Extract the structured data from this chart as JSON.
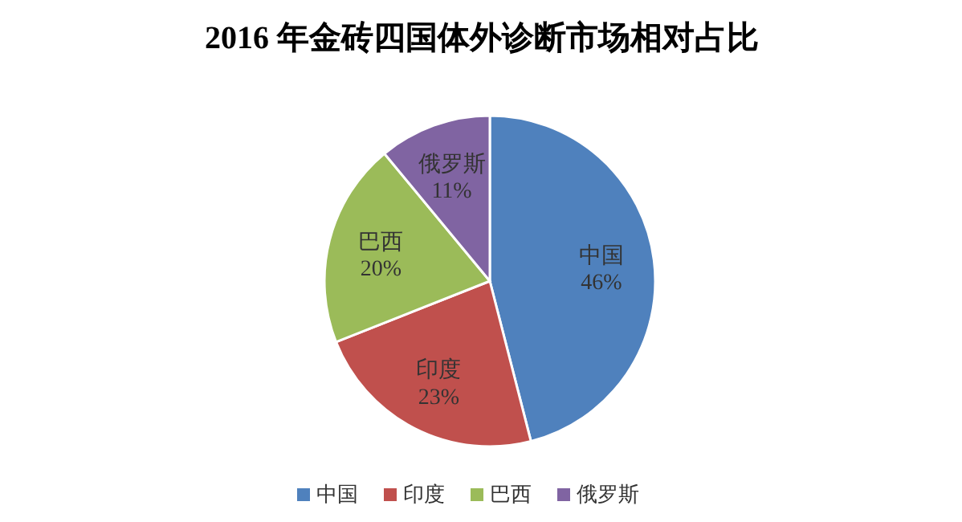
{
  "chart_data": {
    "type": "pie",
    "title": "2016 年金砖四国体外诊断市场相对占比",
    "categories": [
      "中国",
      "印度",
      "巴西",
      "俄罗斯"
    ],
    "values": [
      46,
      23,
      20,
      11
    ],
    "colors": [
      "#4f81bd",
      "#c0504d",
      "#9bbb59",
      "#8064a2"
    ],
    "value_labels": [
      "46%",
      "23%",
      "20%",
      "11%"
    ],
    "legend": "bottom"
  }
}
